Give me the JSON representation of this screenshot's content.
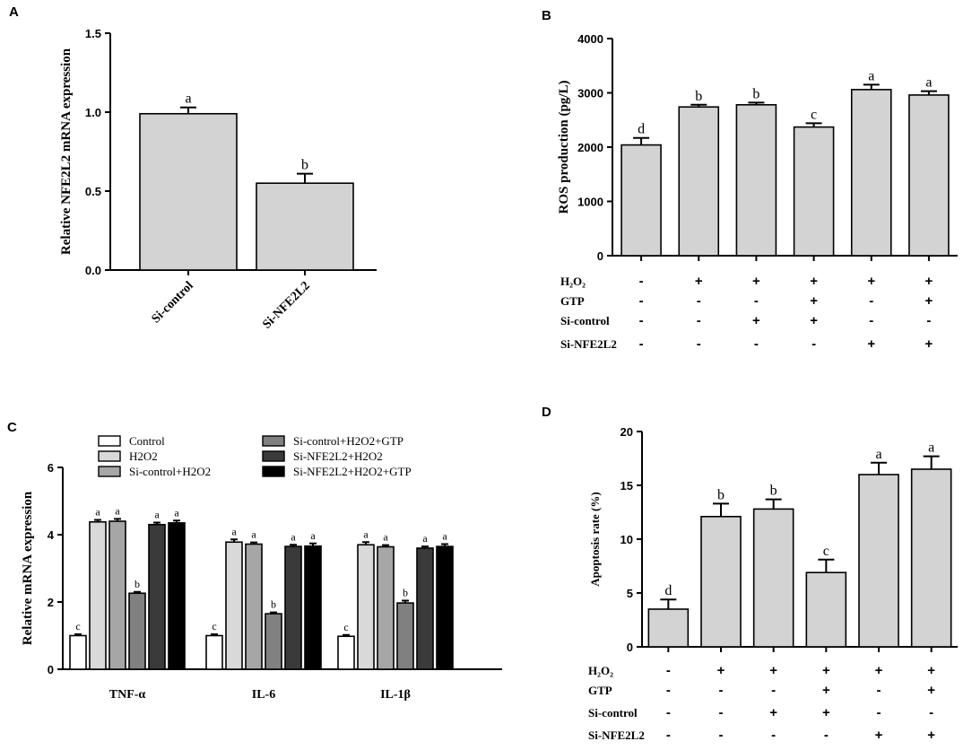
{
  "chart_data": [
    {
      "panel": "A",
      "type": "bar",
      "title": "",
      "xlabel": "",
      "ylabel": "Relative NFE2L2 mRNA expression",
      "ylim": [
        0,
        1.5
      ],
      "yticks": [
        "0.0",
        "0.5",
        "1.0",
        "1.5"
      ],
      "categories": [
        "Si-control",
        "Si-NFE2L2"
      ],
      "values": [
        0.99,
        0.55
      ],
      "errors": [
        0.04,
        0.06
      ],
      "labels": [
        "a",
        "b"
      ],
      "bar_color": "#d3d3d3"
    },
    {
      "panel": "B",
      "type": "bar",
      "title": "",
      "ylabel": "ROS production (pg/L)",
      "ylim": [
        0,
        4000
      ],
      "yticks": [
        "0",
        "1000",
        "2000",
        "3000",
        "4000"
      ],
      "values": [
        2040,
        2740,
        2780,
        2370,
        3060,
        2960
      ],
      "errors": [
        130,
        40,
        40,
        70,
        90,
        70
      ],
      "labels": [
        "d",
        "b",
        "b",
        "c",
        "a",
        "a"
      ],
      "bar_color": "#d3d3d3",
      "treatments": [
        {
          "name": "H₂O₂",
          "signs": [
            "-",
            "+",
            "+",
            "+",
            "+",
            "+"
          ]
        },
        {
          "name": "GTP",
          "signs": [
            "-",
            "-",
            "-",
            "+",
            "-",
            "+"
          ]
        },
        {
          "name": "Si-control",
          "signs": [
            "-",
            "-",
            "+",
            "+",
            "-",
            "-"
          ]
        },
        {
          "name": "Si-NFE2L2",
          "signs": [
            "-",
            "-",
            "-",
            "-",
            "+",
            "+"
          ]
        }
      ]
    },
    {
      "panel": "C",
      "type": "bar",
      "title": "",
      "ylabel": "Relative mRNA expression",
      "ylim": [
        0,
        6
      ],
      "yticks": [
        "0",
        "2",
        "4",
        "6"
      ],
      "categories": [
        "TNF-α",
        "IL-6",
        "IL-1β"
      ],
      "series": [
        {
          "name": "Control",
          "color": "#ffffff",
          "values": [
            1.0,
            1.0,
            0.98
          ],
          "errors": [
            0.04,
            0.04,
            0.04
          ],
          "labels": [
            "c",
            "c",
            "c"
          ]
        },
        {
          "name": "H2O2",
          "color": "#d9d9d9",
          "values": [
            4.38,
            3.78,
            3.7
          ],
          "errors": [
            0.06,
            0.08,
            0.08
          ],
          "labels": [
            "a",
            "a",
            "a"
          ]
        },
        {
          "name": "Si-control+H2O2",
          "color": "#a6a6a6",
          "values": [
            4.4,
            3.72,
            3.64
          ],
          "errors": [
            0.07,
            0.05,
            0.05
          ],
          "labels": [
            "a",
            "a",
            "a"
          ]
        },
        {
          "name": "Si-control+H2O2+GTP",
          "color": "#808080",
          "values": [
            2.26,
            1.65,
            1.97
          ],
          "errors": [
            0.04,
            0.04,
            0.07
          ],
          "labels": [
            "b",
            "b",
            "b"
          ]
        },
        {
          "name": "Si-NFE2L2+H2O2",
          "color": "#3a3a3a",
          "values": [
            4.3,
            3.65,
            3.6
          ],
          "errors": [
            0.06,
            0.05,
            0.05
          ],
          "labels": [
            "a",
            "a",
            "a"
          ]
        },
        {
          "name": "Si-NFE2L2+H2O2+GTP",
          "color": "#000000",
          "values": [
            4.35,
            3.66,
            3.65
          ],
          "errors": [
            0.07,
            0.08,
            0.07
          ],
          "labels": [
            "a",
            "a",
            "a"
          ]
        }
      ]
    },
    {
      "panel": "D",
      "type": "bar",
      "title": "",
      "ylabel": "Apoptosis rate (%)",
      "ylim": [
        0,
        20
      ],
      "yticks": [
        "0",
        "5",
        "10",
        "15",
        "20"
      ],
      "values": [
        3.5,
        12.1,
        12.8,
        6.9,
        16.0,
        16.5
      ],
      "errors": [
        0.9,
        1.2,
        0.9,
        1.2,
        1.1,
        1.2
      ],
      "labels": [
        "d",
        "b",
        "b",
        "c",
        "a",
        "a"
      ],
      "bar_color": "#d3d3d3",
      "treatments": [
        {
          "name": "H₂O₂",
          "signs": [
            "-",
            "+",
            "+",
            "+",
            "+",
            "+"
          ]
        },
        {
          "name": "GTP",
          "signs": [
            "-",
            "-",
            "-",
            "+",
            "-",
            "+"
          ]
        },
        {
          "name": "Si-control",
          "signs": [
            "-",
            "-",
            "+",
            "+",
            "-",
            "-"
          ]
        },
        {
          "name": "Si-NFE2L2",
          "signs": [
            "-",
            "-",
            "-",
            "-",
            "+",
            "+"
          ]
        }
      ]
    }
  ]
}
